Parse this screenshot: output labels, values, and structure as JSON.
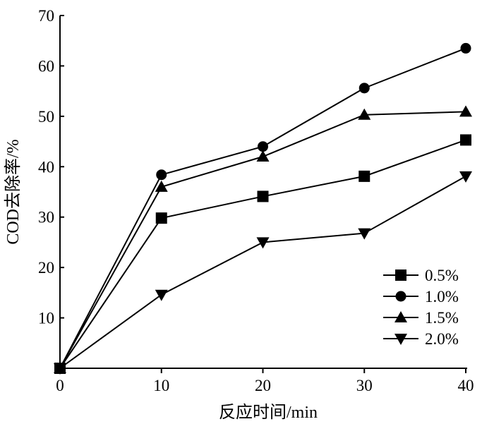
{
  "chart_data": {
    "type": "line",
    "title": "",
    "xlabel": "反应时间/min",
    "ylabel": "COD去除率/%",
    "x": [
      0,
      10,
      20,
      30,
      40
    ],
    "xlim": [
      0,
      40
    ],
    "ylim": [
      0,
      70
    ],
    "xticks": [
      0,
      10,
      20,
      30,
      40
    ],
    "yticks": [
      10,
      20,
      30,
      40,
      50,
      60,
      70
    ],
    "grid": false,
    "legend_position": "bottom-right",
    "series": [
      {
        "name": "0.5%",
        "marker": "square",
        "values": [
          0,
          29.8,
          34.1,
          38.1,
          45.3
        ]
      },
      {
        "name": "1.0%",
        "marker": "circle",
        "values": [
          0,
          38.4,
          44.0,
          55.6,
          63.5
        ]
      },
      {
        "name": "1.5%",
        "marker": "triangle-up",
        "values": [
          0,
          36.0,
          42.0,
          50.3,
          50.9
        ]
      },
      {
        "name": "2.0%",
        "marker": "triangle-down",
        "values": [
          0,
          14.6,
          25.0,
          26.8,
          38.1
        ]
      }
    ],
    "colors": {
      "line": "#000000",
      "marker": "#000000",
      "background": "#ffffff"
    }
  }
}
